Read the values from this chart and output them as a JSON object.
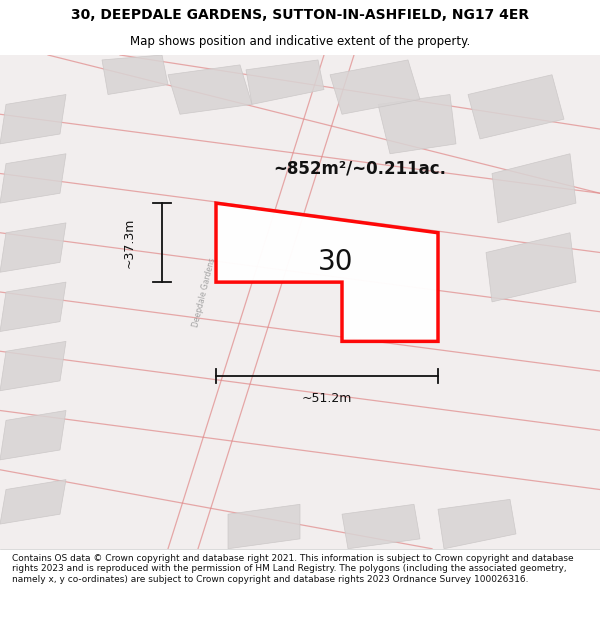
{
  "title_line1": "30, DEEPDALE GARDENS, SUTTON-IN-ASHFIELD, NG17 4ER",
  "title_line2": "Map shows position and indicative extent of the property.",
  "footer_text": "Contains OS data © Crown copyright and database right 2021. This information is subject to Crown copyright and database rights 2023 and is reproduced with the permission of HM Land Registry. The polygons (including the associated geometry, namely x, y co-ordinates) are subject to Crown copyright and database rights 2023 Ordnance Survey 100026316.",
  "area_label": "~852m²/~0.211ac.",
  "number_label": "30",
  "width_label": "~51.2m",
  "height_label": "~37.3m",
  "map_bg": "#f2eeee",
  "road_line_color": "#e08888",
  "building_color": "#d8d4d4",
  "building_edge_color": "#c8c4c4",
  "highlight_color": "#ff0000",
  "text_color": "#111111",
  "road_text_color": "#999999",
  "dim_line_color": "#111111"
}
